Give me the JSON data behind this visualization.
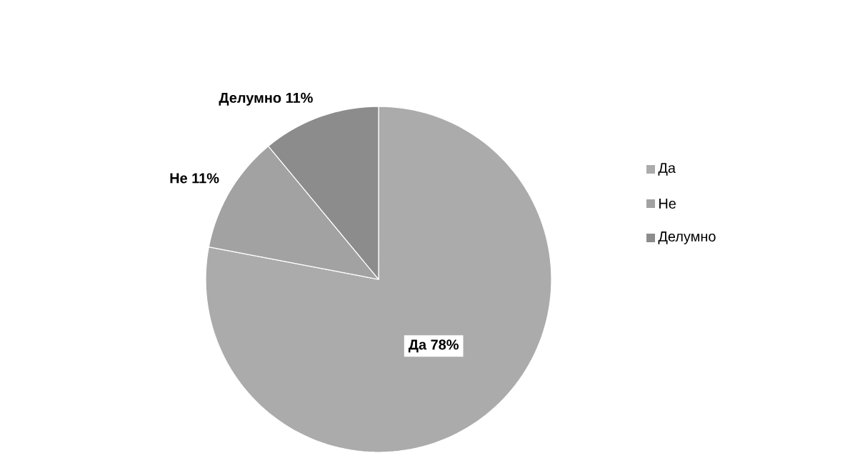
{
  "chart_data": {
    "type": "pie",
    "categories": [
      "Да",
      "Не",
      "Делумно"
    ],
    "values": [
      78,
      11,
      11
    ],
    "colors": [
      "#ababab",
      "#a2a2a2",
      "#8c8c8c"
    ],
    "value_labels": [
      "78%",
      "11%",
      "11%"
    ],
    "legend": "right"
  }
}
